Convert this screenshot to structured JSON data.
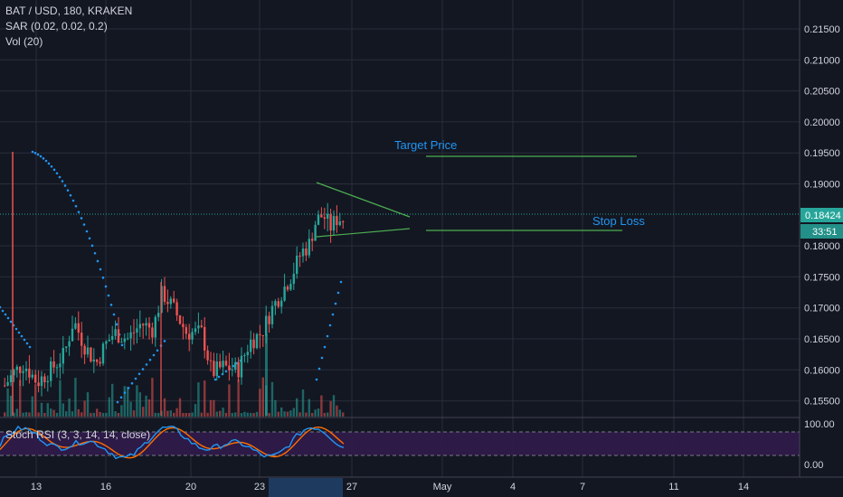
{
  "header": {
    "symbol_line": "BAT / USD, 180, KRAKEN",
    "sar_line": "SAR (0.02, 0.02, 0.2)",
    "vol_line": "Vol (20)"
  },
  "rsi_panel": {
    "label": "Stoch RSI (3, 3, 14, 14, close)",
    "ticks": [
      "100.00",
      "0.00"
    ]
  },
  "price_axis": {
    "ticks": [
      "0.21500",
      "0.21000",
      "0.20500",
      "0.20000",
      "0.19500",
      "0.19000",
      "0.18000",
      "0.17500",
      "0.17000",
      "0.16500",
      "0.16000",
      "0.15500"
    ],
    "last_price": "0.18424",
    "countdown": "33:51"
  },
  "time_axis": {
    "labels": [
      "13",
      "16",
      "20",
      "23",
      "27",
      "May",
      "4",
      "7",
      "11",
      "14"
    ]
  },
  "annotations": {
    "target_label": "Target Price",
    "stop_label": "Stop Loss"
  },
  "colors": {
    "background": "#131722",
    "grid": "#2a2e39",
    "up": "#26a69a",
    "down": "#ef5350",
    "sar": "#2196f3",
    "trend": "#4caf50",
    "rsi_k": "#2196f3",
    "rsi_d": "#ff6d00",
    "rsi_band": "#311b4a",
    "label_text": "#2196f3",
    "price_label_bg": "#2962ff"
  },
  "chart_data": {
    "type": "candlestick",
    "symbol": "BAT / USD",
    "timeframe": "180",
    "exchange": "KRAKEN",
    "ylim": [
      0.1525,
      0.2165
    ],
    "target_price": 0.194,
    "stop_loss": 0.1821,
    "last_price": 0.18424,
    "triangle": {
      "upper": [
        0.19,
        0.1845
      ],
      "lower": [
        0.181,
        0.1822
      ]
    }
  }
}
